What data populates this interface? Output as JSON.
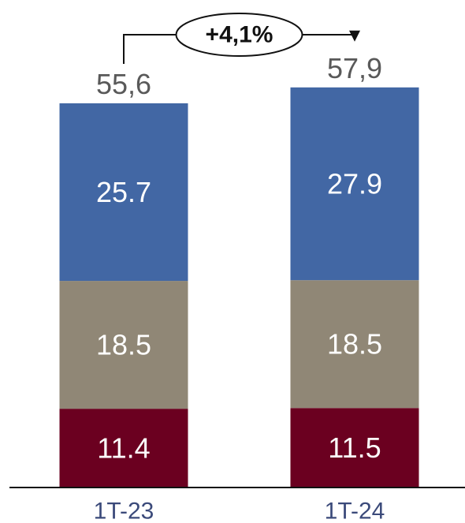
{
  "chart_data": {
    "type": "bar",
    "stacked": true,
    "categories": [
      "1T-23",
      "1T-24"
    ],
    "series": [
      {
        "values": [
          11.4,
          11.5
        ],
        "value_labels": [
          "11.4",
          "11.5"
        ],
        "color": "#6b0020"
      },
      {
        "values": [
          18.5,
          18.5
        ],
        "value_labels": [
          "18.5",
          "18.5"
        ],
        "color": "#908776"
      },
      {
        "values": [
          25.7,
          27.9
        ],
        "value_labels": [
          "25.7",
          "27.9"
        ],
        "color": "#4267a4"
      }
    ],
    "totals": [
      55.6,
      57.9
    ],
    "total_labels": [
      "55,6",
      "57,9"
    ],
    "change_label": "+4,1%",
    "title": "",
    "xlabel": "",
    "ylabel": "",
    "grid": false,
    "legend": false
  },
  "colors": {
    "axis": "#111111",
    "category_text": "#3b4a7a",
    "total_text": "#595959"
  }
}
